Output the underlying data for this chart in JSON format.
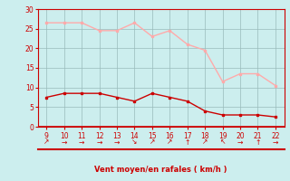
{
  "x": [
    9,
    10,
    11,
    12,
    13,
    14,
    15,
    16,
    17,
    18,
    19,
    20,
    21,
    22
  ],
  "wind_avg": [
    7.5,
    8.5,
    8.5,
    8.5,
    7.5,
    6.5,
    8.5,
    7.5,
    6.5,
    4.0,
    3.0,
    3.0,
    3.0,
    2.5
  ],
  "wind_gust": [
    26.5,
    26.5,
    26.5,
    24.5,
    24.5,
    26.5,
    23.0,
    24.5,
    21.0,
    19.5,
    11.5,
    13.5,
    13.5,
    10.5
  ],
  "avg_color": "#cc0000",
  "gust_color": "#ffaaaa",
  "bg_color": "#cceeee",
  "grid_color": "#99bbbb",
  "xlabel": "Vent moyen/en rafales ( km/h )",
  "xlabel_color": "#cc0000",
  "tick_color": "#cc0000",
  "ylim": [
    0,
    30
  ],
  "yticks": [
    0,
    5,
    10,
    15,
    20,
    25,
    30
  ],
  "xlim": [
    8.5,
    22.5
  ],
  "xticks": [
    9,
    10,
    11,
    12,
    13,
    14,
    15,
    16,
    17,
    18,
    19,
    20,
    21,
    22
  ],
  "spine_color": "#cc0000",
  "arrow_chars": [
    "↗",
    "→",
    "→",
    "→",
    "→",
    "↘",
    "↗",
    "↗",
    "↑",
    "↗",
    "↖",
    "→",
    "↑",
    "→"
  ]
}
